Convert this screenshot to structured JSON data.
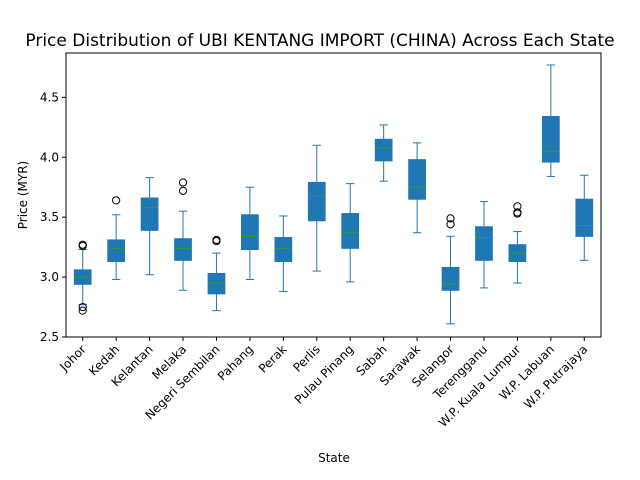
{
  "chart_data": {
    "type": "box",
    "title": "Price Distribution of UBI KENTANG IMPORT (CHINA) Across Each State",
    "xlabel": "State",
    "ylabel": "Price (MYR)",
    "ylim": [
      2.5,
      4.87
    ],
    "yticks": [
      "2.5",
      "3.0",
      "3.5",
      "4.0",
      "4.5"
    ],
    "grid": false,
    "colors": {
      "box": "#1f77b4",
      "median": "#2ca02c",
      "whisker": "#1f77b4",
      "flier": "#000000"
    },
    "categories": [
      "Johor",
      "Kedah",
      "Kelantan",
      "Melaka",
      "Negeri Sembilan",
      "Pahang",
      "Perak",
      "Perlis",
      "Pulau Pinang",
      "Sabah",
      "Sarawak",
      "Selangor",
      "Terengganu",
      "W.P. Kuala Lumpur",
      "W.P. Labuan",
      "W.P. Putrajaya"
    ],
    "boxes": [
      {
        "whislo": 2.77,
        "q1": 2.94,
        "med": 3.0,
        "q3": 3.06,
        "whishi": 3.23,
        "fliers": [
          3.26,
          3.27,
          2.75,
          2.72
        ]
      },
      {
        "whislo": 2.98,
        "q1": 3.13,
        "med": 3.24,
        "q3": 3.31,
        "whishi": 3.52,
        "fliers": [
          3.64
        ]
      },
      {
        "whislo": 3.02,
        "q1": 3.39,
        "med": 3.58,
        "q3": 3.66,
        "whishi": 3.83,
        "fliers": []
      },
      {
        "whislo": 2.89,
        "q1": 3.14,
        "med": 3.24,
        "q3": 3.32,
        "whishi": 3.55,
        "fliers": [
          3.79,
          3.72
        ]
      },
      {
        "whislo": 2.72,
        "q1": 2.86,
        "med": 2.95,
        "q3": 3.03,
        "whishi": 3.2,
        "fliers": [
          3.3,
          3.31
        ]
      },
      {
        "whislo": 2.98,
        "q1": 3.23,
        "med": 3.34,
        "q3": 3.52,
        "whishi": 3.75,
        "fliers": []
      },
      {
        "whislo": 2.88,
        "q1": 3.13,
        "med": 3.24,
        "q3": 3.33,
        "whishi": 3.51,
        "fliers": []
      },
      {
        "whislo": 3.05,
        "q1": 3.47,
        "med": 3.68,
        "q3": 3.79,
        "whishi": 4.1,
        "fliers": []
      },
      {
        "whislo": 2.96,
        "q1": 3.24,
        "med": 3.37,
        "q3": 3.53,
        "whishi": 3.78,
        "fliers": []
      },
      {
        "whislo": 3.8,
        "q1": 3.97,
        "med": 4.08,
        "q3": 4.15,
        "whishi": 4.27,
        "fliers": []
      },
      {
        "whislo": 3.37,
        "q1": 3.65,
        "med": 3.75,
        "q3": 3.98,
        "whishi": 4.12,
        "fliers": []
      },
      {
        "whislo": 2.61,
        "q1": 2.89,
        "med": 2.94,
        "q3": 3.08,
        "whishi": 3.34,
        "fliers": [
          3.49,
          3.44
        ]
      },
      {
        "whislo": 2.91,
        "q1": 3.14,
        "med": 3.33,
        "q3": 3.42,
        "whishi": 3.63,
        "fliers": []
      },
      {
        "whislo": 2.95,
        "q1": 3.13,
        "med": 3.2,
        "q3": 3.27,
        "whishi": 3.38,
        "fliers": [
          3.59,
          3.54,
          3.53
        ]
      },
      {
        "whislo": 3.84,
        "q1": 3.96,
        "med": 4.05,
        "q3": 4.34,
        "whishi": 4.77,
        "fliers": []
      },
      {
        "whislo": 3.14,
        "q1": 3.34,
        "med": 3.43,
        "q3": 3.65,
        "whishi": 3.85,
        "fliers": []
      }
    ]
  }
}
